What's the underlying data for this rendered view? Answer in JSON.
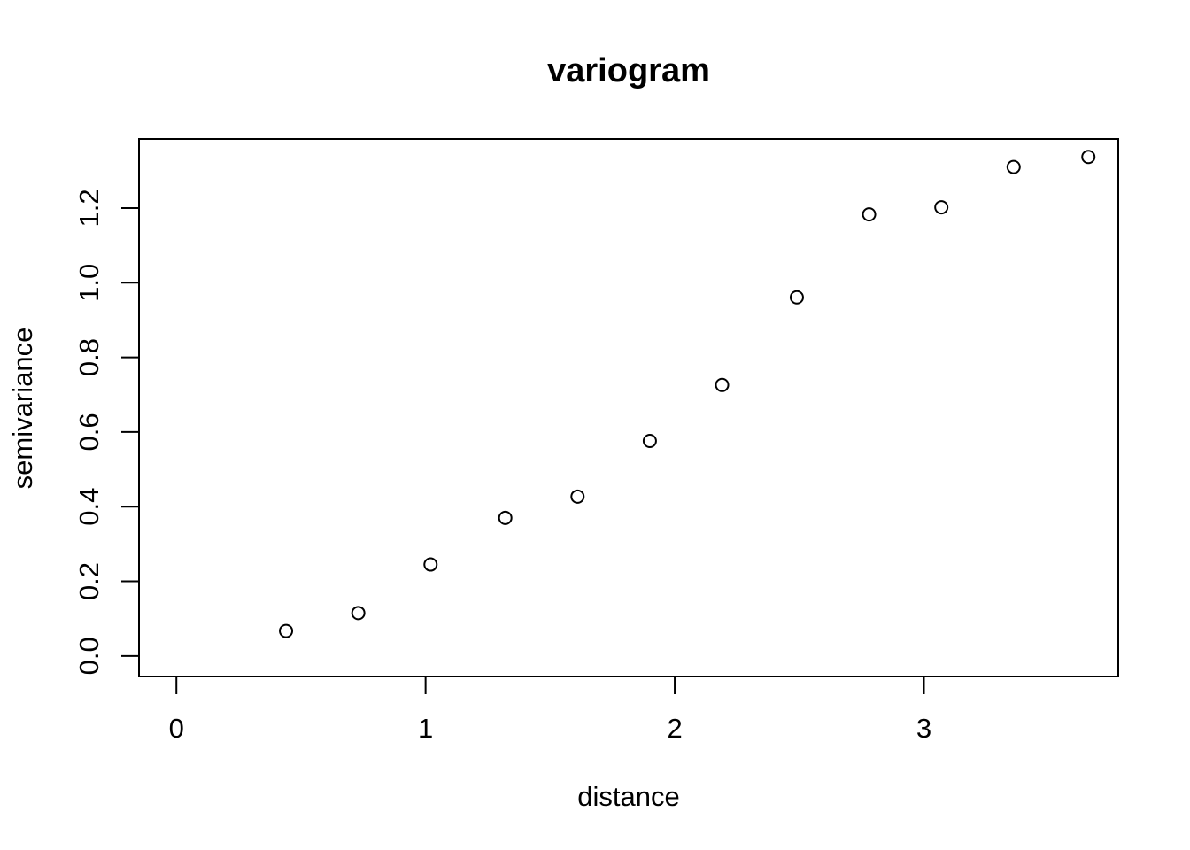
{
  "chart_data": {
    "type": "scatter",
    "title": "variogram",
    "xlabel": "distance",
    "ylabel": "semivariance",
    "xlim": [
      -0.15,
      3.78
    ],
    "ylim": [
      -0.055,
      1.385
    ],
    "x_ticks": [
      0,
      1,
      2,
      3
    ],
    "x_tick_labels": [
      "0",
      "1",
      "2",
      "3"
    ],
    "y_ticks": [
      0.0,
      0.2,
      0.4,
      0.6,
      0.8,
      1.0,
      1.2
    ],
    "y_tick_labels": [
      "0.0",
      "0.2",
      "0.4",
      "0.6",
      "0.8",
      "1.0",
      "1.2"
    ],
    "grid": false,
    "point_style": "open-circle",
    "series": [
      {
        "x": [
          0.44,
          0.73,
          1.02,
          1.32,
          1.61,
          1.9,
          2.19,
          2.49,
          2.78,
          3.07,
          3.36,
          3.66
        ],
        "y": [
          0.067,
          0.115,
          0.245,
          0.37,
          0.427,
          0.576,
          0.726,
          0.961,
          1.183,
          1.202,
          1.31,
          1.337
        ]
      }
    ]
  }
}
